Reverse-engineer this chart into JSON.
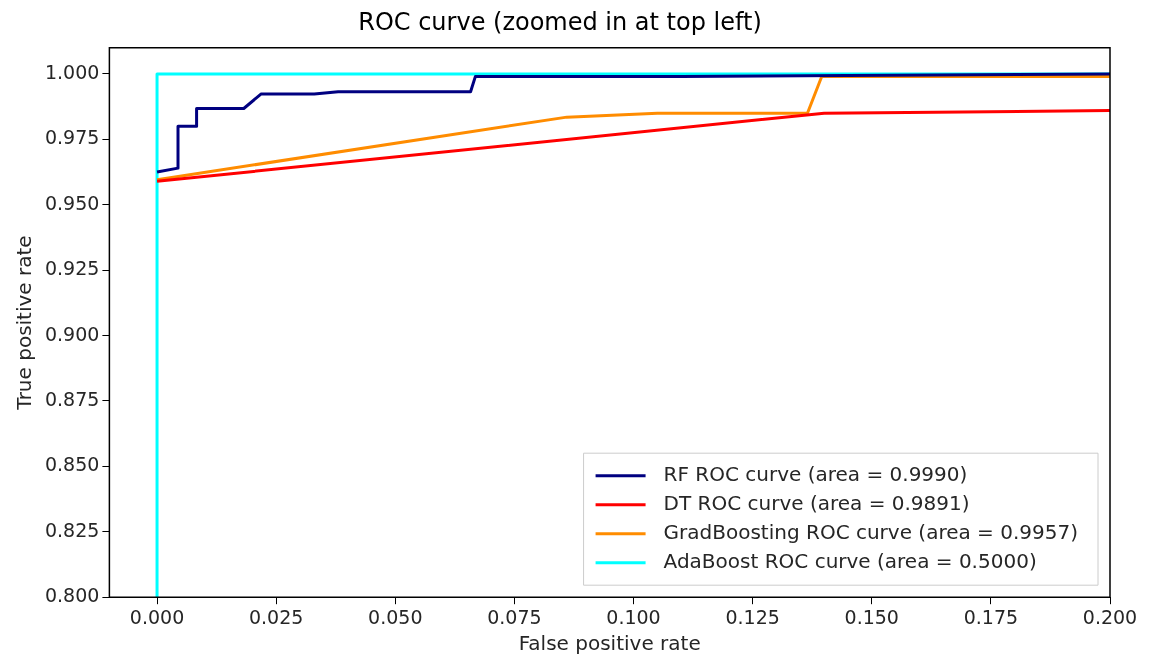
{
  "chart_data": {
    "type": "line",
    "title": "ROC curve (zoomed in at top left)",
    "xlabel": "False positive rate",
    "ylabel": "True positive rate",
    "xlim": [
      -0.01,
      0.2
    ],
    "ylim": [
      0.8,
      1.01
    ],
    "xticks": [
      {
        "value": 0,
        "label": "0.000"
      },
      {
        "value": 0.025,
        "label": "0.025"
      },
      {
        "value": 0.05,
        "label": "0.050"
      },
      {
        "value": 0.075,
        "label": "0.075"
      },
      {
        "value": 0.1,
        "label": "0.100"
      },
      {
        "value": 0.125,
        "label": "0.125"
      },
      {
        "value": 0.15,
        "label": "0.150"
      },
      {
        "value": 0.175,
        "label": "0.175"
      },
      {
        "value": 0.2,
        "label": "0.200"
      }
    ],
    "yticks": [
      {
        "value": 0.8,
        "label": "0.800"
      },
      {
        "value": 0.825,
        "label": "0.825"
      },
      {
        "value": 0.85,
        "label": "0.850"
      },
      {
        "value": 0.875,
        "label": "0.875"
      },
      {
        "value": 0.9,
        "label": "0.900"
      },
      {
        "value": 0.925,
        "label": "0.925"
      },
      {
        "value": 0.95,
        "label": "0.950"
      },
      {
        "value": 0.975,
        "label": "0.975"
      },
      {
        "value": 1.0,
        "label": "1.000"
      }
    ],
    "grid": false,
    "legend": "bottom right",
    "marker": "none",
    "line_style": "solid",
    "series": [
      {
        "name": "RF ROC curve (area = 0.9990)",
        "color": "#000080",
        "x": [
          0,
          0.0044,
          0.0044,
          0.0083,
          0.0083,
          0.0182,
          0.0218,
          0.033,
          0.038,
          0.0658,
          0.0668,
          0.11,
          0.2
        ],
        "values": [
          0.9625,
          0.964,
          0.98,
          0.98,
          0.9868,
          0.9868,
          0.9923,
          0.9923,
          0.9932,
          0.9932,
          0.999,
          0.999,
          1.0
        ]
      },
      {
        "name": "DT ROC curve (area = 0.9891)",
        "color": "#ff0000",
        "x": [
          0,
          0.14,
          0.2
        ],
        "values": [
          0.959,
          0.985,
          0.986
        ]
      },
      {
        "name": "GradBoosting ROC curve (area = 0.9957)",
        "color": "#ff8c00",
        "x": [
          0,
          0.086,
          0.105,
          0.1365,
          0.1395,
          0.2
        ],
        "values": [
          0.9596,
          0.9835,
          0.985,
          0.985,
          0.999,
          0.999
        ]
      },
      {
        "name": "AdaBoost ROC curve (area = 0.5000)",
        "color": "#00ffff",
        "x": [
          0,
          0,
          0.2
        ],
        "values": [
          0.8,
          1.0,
          1.0
        ]
      }
    ]
  }
}
